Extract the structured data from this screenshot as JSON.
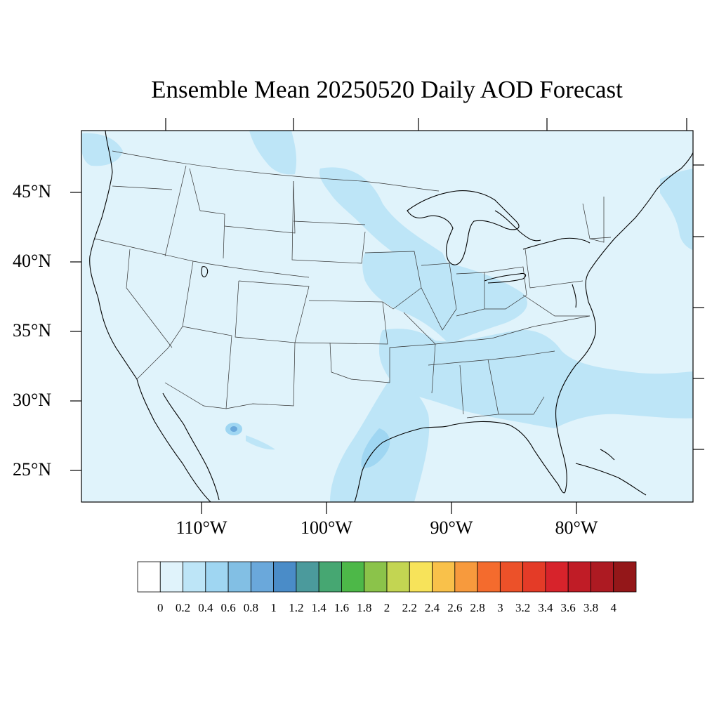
{
  "title": "Ensemble Mean 20250520 Daily AOD Forecast",
  "map": {
    "projection": "conic",
    "region": "Contiguous United States",
    "background_color": "#e0f3fb",
    "boundary_color": "#000000",
    "lat_labels": [
      "45°N",
      "40°N",
      "35°N",
      "30°N",
      "25°N"
    ],
    "lon_labels": [
      "110°W",
      "100°W",
      "90°W",
      "80°W"
    ],
    "aod_features": [
      {
        "name": "central-plains-plume",
        "aod": 0.3
      },
      {
        "name": "midwest-ohio-valley-band",
        "aod": 0.35
      },
      {
        "name": "gulf-coast-texas-plume",
        "aod": 0.4
      },
      {
        "name": "southeast-atlantic-band",
        "aod": 0.3
      },
      {
        "name": "northeast-canada-patch",
        "aod": 0.3
      },
      {
        "name": "northwest-montana-patch",
        "aod": 0.3
      },
      {
        "name": "chihuahua-hotspot",
        "aod": 0.7
      }
    ]
  },
  "colorbar": {
    "colors": [
      "#ffffff",
      "#e0f3fb",
      "#bde5f7",
      "#9fd6f2",
      "#82bfe4",
      "#6aa8db",
      "#4a8cc8",
      "#4b9a9c",
      "#46a772",
      "#4db848",
      "#8bc34a",
      "#c3d552",
      "#f7e35a",
      "#f9c14a",
      "#f79a3d",
      "#f46b2d",
      "#ec5129",
      "#e43b27",
      "#d7232b",
      "#c01c26",
      "#ad1a22",
      "#941719"
    ],
    "labels": [
      "0",
      "0.2",
      "0.4",
      "0.6",
      "0.8",
      "1",
      "1.2",
      "1.4",
      "1.6",
      "1.8",
      "2",
      "2.2",
      "2.4",
      "2.6",
      "2.8",
      "3",
      "3.2",
      "3.4",
      "3.6",
      "3.8",
      "4"
    ]
  }
}
